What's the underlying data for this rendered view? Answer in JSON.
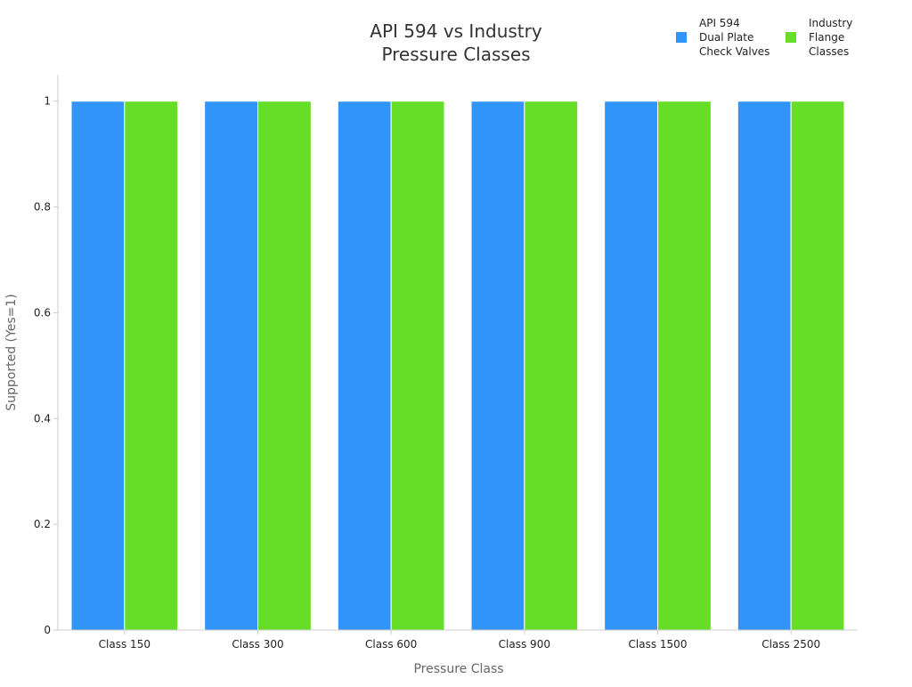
{
  "chart_data": {
    "type": "bar",
    "title_lines": [
      "API 594 vs Industry",
      "Pressure Classes"
    ],
    "xlabel": "Pressure Class",
    "ylabel": "Supported (Yes=1)",
    "categories": [
      "Class 150",
      "Class 300",
      "Class 600",
      "Class 900",
      "Class 1500",
      "Class 2500"
    ],
    "series": [
      {
        "name": "API 594 Dual Plate Check Valves",
        "legend_lines": [
          "API 594",
          "Dual Plate",
          "Check Valves"
        ],
        "color": "#3094f8",
        "values": [
          1,
          1,
          1,
          1,
          1,
          1
        ]
      },
      {
        "name": "Industry Flange Classes",
        "legend_lines": [
          "Industry",
          "Flange",
          "Classes"
        ],
        "color": "#66dd27",
        "values": [
          1,
          1,
          1,
          1,
          1,
          1
        ]
      }
    ],
    "ylim": [
      0,
      1.05
    ],
    "yticks": [
      0,
      0.2,
      0.4,
      0.6,
      0.8,
      1
    ],
    "ytick_labels": [
      "0",
      "0.2",
      "0.4",
      "0.6",
      "0.8",
      "1"
    ],
    "grid": false,
    "legend_position": "top-right"
  }
}
